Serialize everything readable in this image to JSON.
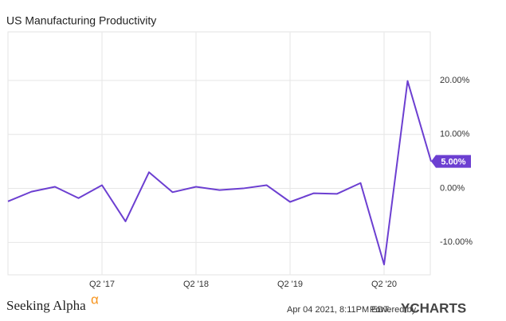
{
  "chart_data": {
    "type": "line",
    "title": "US Manufacturing Productivity",
    "categories": [
      null,
      null,
      null,
      null,
      "Q2 '17",
      null,
      null,
      null,
      "Q2 '18",
      null,
      null,
      null,
      "Q2 '19",
      null,
      null,
      null,
      "Q2 '20",
      null,
      null
    ],
    "series": [
      {
        "name": "US Manufacturing Productivity",
        "color": "#6c3fd1",
        "values": [
          -2.4,
          -0.6,
          0.3,
          -1.8,
          0.6,
          -6.1,
          3.0,
          -0.7,
          0.3,
          -0.3,
          0.0,
          0.6,
          -2.5,
          -0.9,
          -1.0,
          1.0,
          -14.1,
          19.9,
          5.0
        ],
        "value_labels": [
          null,
          null,
          null,
          null,
          null,
          null,
          null,
          null,
          null,
          null,
          null,
          null,
          null,
          null,
          null,
          null,
          null,
          null,
          "5.00%"
        ]
      }
    ],
    "ylim": [
      -16,
      29
    ],
    "yticks": [
      {
        "value": -10,
        "label": "-10.00%"
      },
      {
        "value": 0,
        "label": "0.00%"
      },
      {
        "value": 10,
        "label": "10.00%"
      },
      {
        "value": 20,
        "label": "20.00%"
      }
    ],
    "grid": true
  },
  "footer": {
    "brand": "Seeking Alpha",
    "brand_mark": "α",
    "timestamp": "Apr 04 2021, 8:11PM EDT.",
    "powered_by": "Powered by",
    "provider": "YCHARTS"
  }
}
